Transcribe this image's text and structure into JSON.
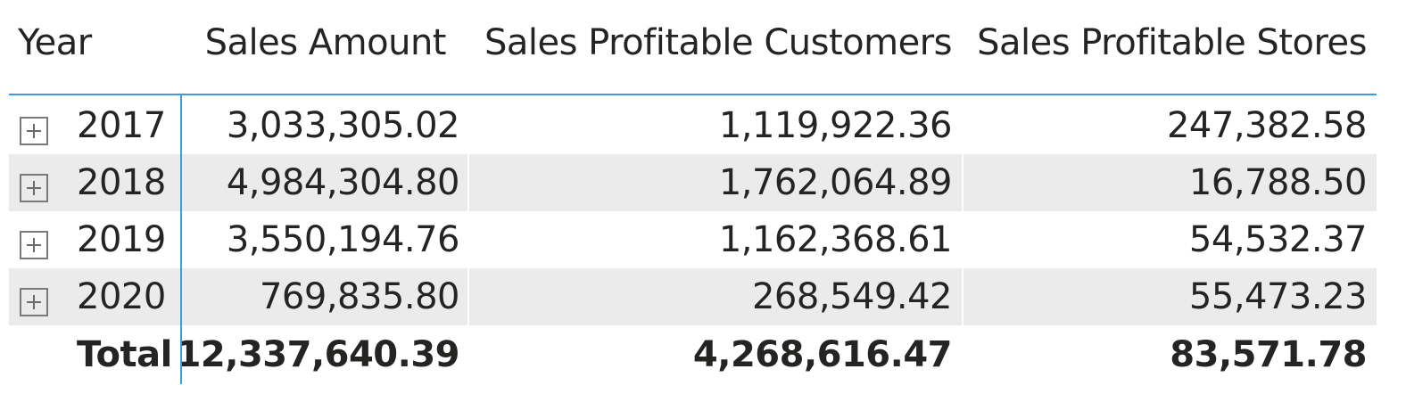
{
  "matrix": {
    "headers": {
      "year": "Year",
      "sales_amount": "Sales Amount",
      "sales_profitable_customers": "Sales Profitable Customers",
      "sales_profitable_stores": "Sales Profitable Stores"
    },
    "rows": [
      {
        "year": "2017",
        "sales_amount": "3,033,305.02",
        "sales_profitable_customers": "1,119,922.36",
        "sales_profitable_stores": "247,382.58"
      },
      {
        "year": "2018",
        "sales_amount": "4,984,304.80",
        "sales_profitable_customers": "1,762,064.89",
        "sales_profitable_stores": "16,788.50"
      },
      {
        "year": "2019",
        "sales_amount": "3,550,194.76",
        "sales_profitable_customers": "1,162,368.61",
        "sales_profitable_stores": "54,532.37"
      },
      {
        "year": "2020",
        "sales_amount": "769,835.80",
        "sales_profitable_customers": "268,549.42",
        "sales_profitable_stores": "55,473.23"
      }
    ],
    "total": {
      "label": "Total",
      "sales_amount": "12,337,640.39",
      "sales_profitable_customers": "4,268,616.47",
      "sales_profitable_stores": "83,571.78"
    },
    "expand_icon": "plus-square-icon",
    "colors": {
      "accent_line": "#3d9be0",
      "row_shade": "#ebebeb",
      "text": "#252423"
    }
  }
}
